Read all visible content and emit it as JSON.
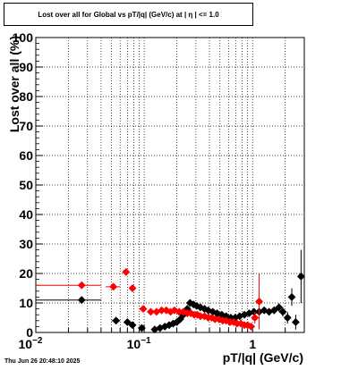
{
  "title": "Lost over all for Global vs pT/|q| (GeV/c) at |  η  | <= 1.0",
  "footer_timestamp": "Thu Jun 26 20:48:10 2025",
  "chart_data": {
    "type": "scatter",
    "title": "Lost over all for Global vs pT/|q| (GeV/c) at |  η  | <= 1.0",
    "xlabel": "pT/|q| (GeV/c)",
    "ylabel": "Lost over all (%)",
    "x_scale": "log",
    "xlim": [
      0.01,
      3.0
    ],
    "ylim": [
      0,
      100
    ],
    "grid": true,
    "x_ticks": [
      {
        "value": 0.01,
        "label": "10",
        "sup": "−2"
      },
      {
        "value": 0.1,
        "label": "10",
        "sup": "−1"
      },
      {
        "value": 1,
        "label": "1",
        "sup": ""
      }
    ],
    "y_ticks": [
      0,
      10,
      20,
      30,
      40,
      50,
      60,
      70,
      80,
      90,
      100
    ],
    "series": [
      {
        "color": "#000000",
        "marker": "diamond",
        "points": [
          {
            "x": 0.0265,
            "y": 11.0,
            "xerr": [
              0.0165,
              0.0135
            ],
            "yerr": 0
          },
          {
            "x": 0.055,
            "y": 4.0,
            "xerr": [
              0.005,
              0.005
            ],
            "yerr": 0.5
          },
          {
            "x": 0.07,
            "y": 3.5,
            "xerr": [
              0.005,
              0.005
            ],
            "yerr": 0.5
          },
          {
            "x": 0.078,
            "y": 2.5,
            "xerr": [
              0.004,
              0.004
            ],
            "yerr": 0.5
          },
          {
            "x": 0.095,
            "y": 1.5,
            "xerr": [
              0.005,
              0.005
            ],
            "yerr": 0.5
          },
          {
            "x": 0.125,
            "y": 1.0,
            "xerr": [
              0.005,
              0.005
            ],
            "yerr": 0.3
          },
          {
            "x": 0.14,
            "y": 1.5,
            "xerr": [
              0.005,
              0.005
            ],
            "yerr": 0.3
          },
          {
            "x": 0.155,
            "y": 2.0,
            "xerr": [
              0.005,
              0.005
            ],
            "yerr": 0.3
          },
          {
            "x": 0.17,
            "y": 2.5,
            "xerr": [
              0.005,
              0.005
            ],
            "yerr": 0.3
          },
          {
            "x": 0.185,
            "y": 3.0,
            "xerr": [
              0.005,
              0.005
            ],
            "yerr": 0.3
          },
          {
            "x": 0.2,
            "y": 3.5,
            "xerr": [
              0.005,
              0.005
            ],
            "yerr": 0.3
          },
          {
            "x": 0.215,
            "y": 4.5,
            "xerr": [
              0.005,
              0.005
            ],
            "yerr": 0.3
          },
          {
            "x": 0.23,
            "y": 6.0,
            "xerr": [
              0.005,
              0.005
            ],
            "yerr": 0.3
          },
          {
            "x": 0.25,
            "y": 8.0,
            "xerr": [
              0.005,
              0.005
            ],
            "yerr": 0.3
          },
          {
            "x": 0.265,
            "y": 10.0,
            "xerr": [
              0.005,
              0.005
            ],
            "yerr": 0.3
          },
          {
            "x": 0.285,
            "y": 9.5,
            "xerr": [
              0.005,
              0.005
            ],
            "yerr": 0.3
          },
          {
            "x": 0.305,
            "y": 9.0,
            "xerr": [
              0.005,
              0.005
            ],
            "yerr": 0.3
          },
          {
            "x": 0.33,
            "y": 8.5,
            "xerr": [
              0.005,
              0.005
            ],
            "yerr": 0.3
          },
          {
            "x": 0.36,
            "y": 8.0,
            "xerr": [
              0.005,
              0.005
            ],
            "yerr": 0.3
          },
          {
            "x": 0.39,
            "y": 7.5,
            "xerr": [
              0.005,
              0.005
            ],
            "yerr": 0.3
          },
          {
            "x": 0.43,
            "y": 7.0,
            "xerr": [
              0.005,
              0.005
            ],
            "yerr": 0.3
          },
          {
            "x": 0.47,
            "y": 6.5,
            "xerr": [
              0.005,
              0.005
            ],
            "yerr": 0.3
          },
          {
            "x": 0.52,
            "y": 6.0,
            "xerr": [
              0.005,
              0.005
            ],
            "yerr": 0.3
          },
          {
            "x": 0.57,
            "y": 5.5,
            "xerr": [
              0.005,
              0.005
            ],
            "yerr": 0.3
          },
          {
            "x": 0.63,
            "y": 5.0,
            "xerr": [
              0.005,
              0.005
            ],
            "yerr": 0.4
          },
          {
            "x": 0.69,
            "y": 5.0,
            "xerr": [
              0.005,
              0.005
            ],
            "yerr": 0.4
          },
          {
            "x": 0.76,
            "y": 5.5,
            "xerr": [
              0.005,
              0.005
            ],
            "yerr": 0.5
          },
          {
            "x": 0.84,
            "y": 6.0,
            "xerr": [
              0.005,
              0.005
            ],
            "yerr": 0.6
          },
          {
            "x": 0.93,
            "y": 6.5,
            "xerr": [
              0.005,
              0.005
            ],
            "yerr": 0.7
          },
          {
            "x": 1.03,
            "y": 7.0,
            "xerr": [
              0.005,
              0.005
            ],
            "yerr": 0.8
          },
          {
            "x": 1.15,
            "y": 7.0,
            "xerr": [
              0.005,
              0.005
            ],
            "yerr": 0.9
          },
          {
            "x": 1.28,
            "y": 7.5,
            "xerr": [
              0.005,
              0.005
            ],
            "yerr": 1.0
          },
          {
            "x": 1.42,
            "y": 7.0,
            "xerr": [
              0.005,
              0.005
            ],
            "yerr": 1.1
          },
          {
            "x": 1.58,
            "y": 7.5,
            "xerr": [
              0.005,
              0.005
            ],
            "yerr": 1.2
          },
          {
            "x": 1.75,
            "y": 8.5,
            "xerr": [
              0.005,
              0.005
            ],
            "yerr": 1.4
          },
          {
            "x": 1.9,
            "y": 7.0,
            "xerr": [
              0.005,
              0.005
            ],
            "yerr": 1.6
          },
          {
            "x": 2.1,
            "y": 5.0,
            "xerr": [
              0.005,
              0.005
            ],
            "yerr": 2.0
          },
          {
            "x": 2.3,
            "y": 12.0,
            "xerr": [
              0.005,
              0.005
            ],
            "yerr": 3.0
          },
          {
            "x": 2.5,
            "y": 3.5,
            "xerr": [
              0.005,
              0.005
            ],
            "yerr": 2.5
          },
          {
            "x": 2.8,
            "y": 19.0,
            "xerr": [
              0.005,
              0.005
            ],
            "yerr": 9.0
          }
        ]
      },
      {
        "color": "#ff0000",
        "marker": "diamond",
        "points": [
          {
            "x": 0.0265,
            "y": 16.0,
            "xerr": [
              0.0165,
              0.0135
            ],
            "yerr": 0
          },
          {
            "x": 0.052,
            "y": 15.5,
            "xerr": [
              0.008,
              0.008
            ],
            "yerr": 0.5
          },
          {
            "x": 0.068,
            "y": 20.5,
            "xerr": [
              0.003,
              0.003
            ],
            "yerr": 0.5
          },
          {
            "x": 0.078,
            "y": 15.0,
            "xerr": [
              0.003,
              0.003
            ],
            "yerr": 0.5
          },
          {
            "x": 0.098,
            "y": 8.0,
            "xerr": [
              0.005,
              0.005
            ],
            "yerr": 0.5
          },
          {
            "x": 0.115,
            "y": 7.0,
            "xerr": [
              0.005,
              0.005
            ],
            "yerr": 0.5
          },
          {
            "x": 0.13,
            "y": 7.0,
            "xerr": [
              0.005,
              0.005
            ],
            "yerr": 0.5
          },
          {
            "x": 0.145,
            "y": 7.5,
            "xerr": [
              0.005,
              0.005
            ],
            "yerr": 0.5
          },
          {
            "x": 0.16,
            "y": 7.5,
            "xerr": [
              0.005,
              0.005
            ],
            "yerr": 0.5
          },
          {
            "x": 0.175,
            "y": 7.0,
            "xerr": [
              0.005,
              0.005
            ],
            "yerr": 0.5
          },
          {
            "x": 0.19,
            "y": 7.5,
            "xerr": [
              0.005,
              0.005
            ],
            "yerr": 0.5
          },
          {
            "x": 0.21,
            "y": 7.0,
            "xerr": [
              0.005,
              0.005
            ],
            "yerr": 0.5
          },
          {
            "x": 0.23,
            "y": 7.0,
            "xerr": [
              0.005,
              0.005
            ],
            "yerr": 0.5
          },
          {
            "x": 0.25,
            "y": 6.5,
            "xerr": [
              0.005,
              0.005
            ],
            "yerr": 0.5
          },
          {
            "x": 0.27,
            "y": 6.5,
            "xerr": [
              0.005,
              0.005
            ],
            "yerr": 0.5
          },
          {
            "x": 0.29,
            "y": 6.0,
            "xerr": [
              0.005,
              0.005
            ],
            "yerr": 0.5
          },
          {
            "x": 0.31,
            "y": 6.0,
            "xerr": [
              0.005,
              0.005
            ],
            "yerr": 0.5
          },
          {
            "x": 0.33,
            "y": 5.5,
            "xerr": [
              0.005,
              0.005
            ],
            "yerr": 0.5
          },
          {
            "x": 0.36,
            "y": 5.5,
            "xerr": [
              0.005,
              0.005
            ],
            "yerr": 0.5
          },
          {
            "x": 0.39,
            "y": 5.0,
            "xerr": [
              0.005,
              0.005
            ],
            "yerr": 0.5
          },
          {
            "x": 0.42,
            "y": 5.0,
            "xerr": [
              0.005,
              0.005
            ],
            "yerr": 0.5
          },
          {
            "x": 0.45,
            "y": 4.5,
            "xerr": [
              0.005,
              0.005
            ],
            "yerr": 0.5
          },
          {
            "x": 0.49,
            "y": 4.5,
            "xerr": [
              0.005,
              0.005
            ],
            "yerr": 0.5
          },
          {
            "x": 0.53,
            "y": 4.0,
            "xerr": [
              0.005,
              0.005
            ],
            "yerr": 0.5
          },
          {
            "x": 0.57,
            "y": 4.0,
            "xerr": [
              0.005,
              0.005
            ],
            "yerr": 0.5
          },
          {
            "x": 0.62,
            "y": 3.5,
            "xerr": [
              0.005,
              0.005
            ],
            "yerr": 0.6
          },
          {
            "x": 0.67,
            "y": 3.5,
            "xerr": [
              0.005,
              0.005
            ],
            "yerr": 0.6
          },
          {
            "x": 0.72,
            "y": 3.0,
            "xerr": [
              0.005,
              0.005
            ],
            "yerr": 0.7
          },
          {
            "x": 0.78,
            "y": 3.0,
            "xerr": [
              0.005,
              0.005
            ],
            "yerr": 0.8
          },
          {
            "x": 0.84,
            "y": 2.5,
            "xerr": [
              0.005,
              0.005
            ],
            "yerr": 0.9
          },
          {
            "x": 0.9,
            "y": 2.5,
            "xerr": [
              0.005,
              0.005
            ],
            "yerr": 1.0
          },
          {
            "x": 0.97,
            "y": 2.0,
            "xerr": [
              0.005,
              0.005
            ],
            "yerr": 1.0
          },
          {
            "x": 1.05,
            "y": 5.0,
            "xerr": [
              0.005,
              0.005
            ],
            "yerr": 2.0
          },
          {
            "x": 1.15,
            "y": 10.5,
            "xerr": [
              0.005,
              0.005
            ],
            "yerr": 9.5
          }
        ]
      }
    ]
  }
}
